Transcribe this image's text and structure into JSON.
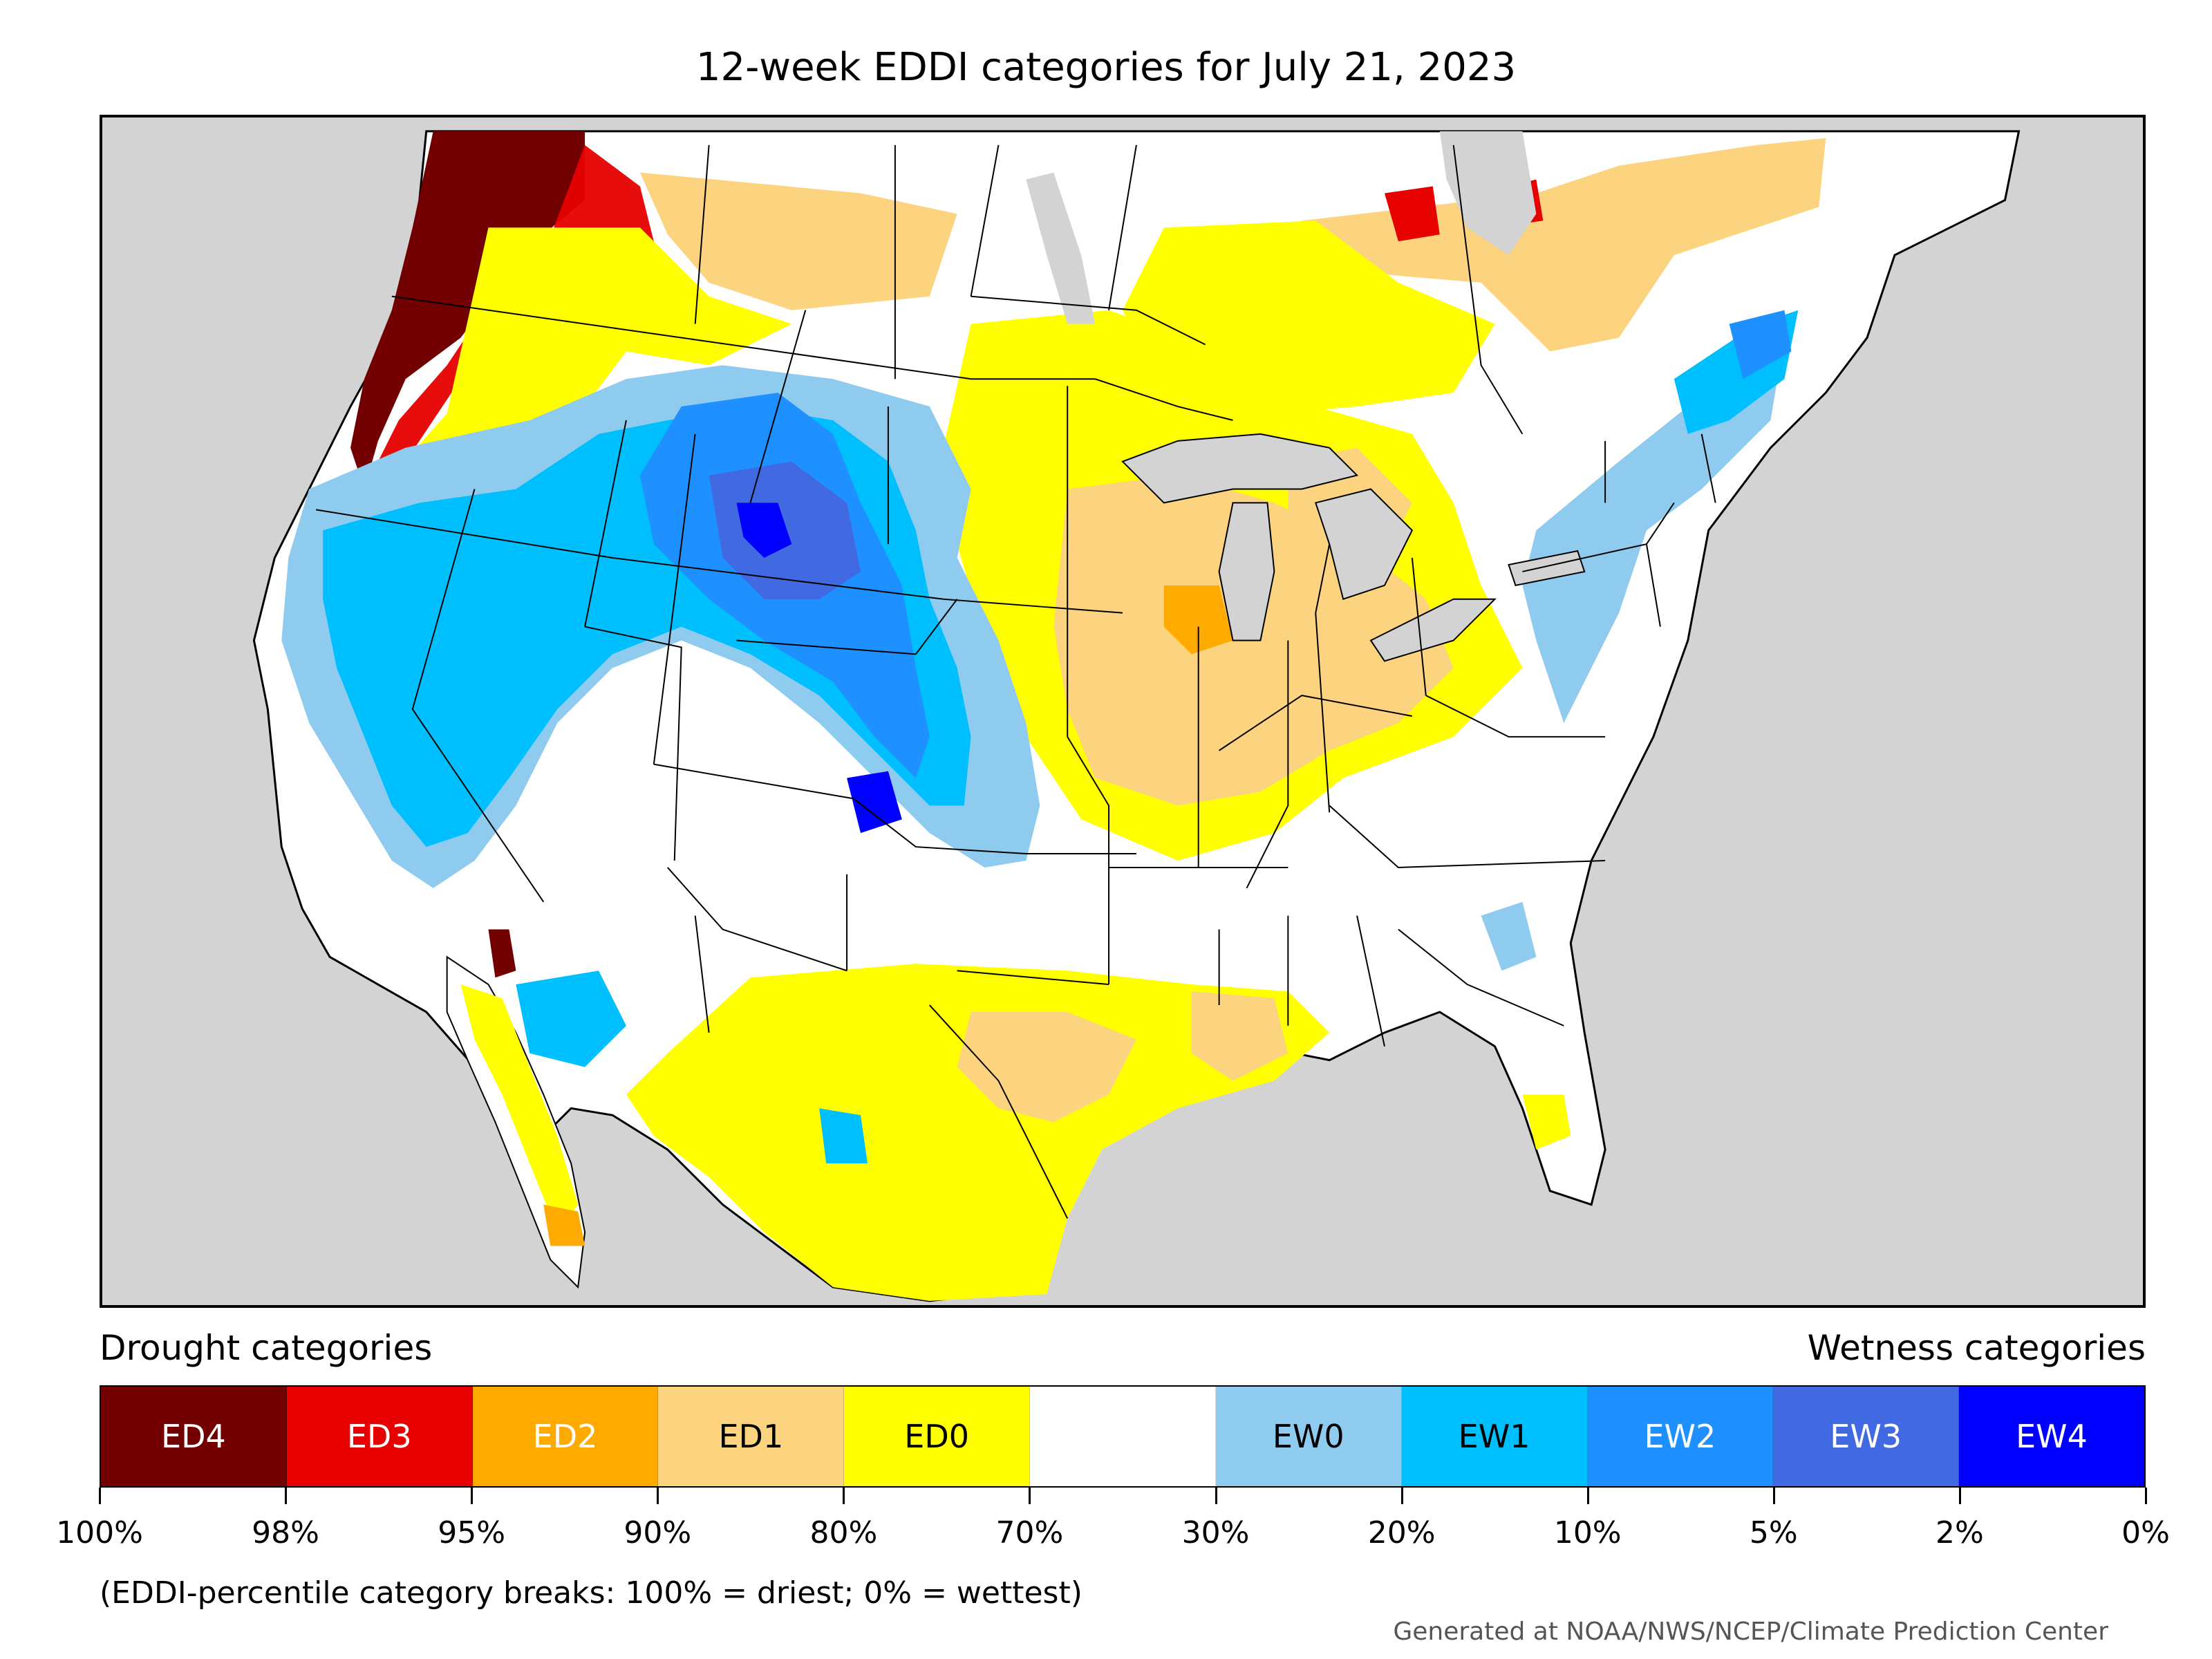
{
  "title": "12-week EDDI categories for July 21, 2023",
  "legend": {
    "drought_label": "Drought categories",
    "wetness_label": "Wetness categories",
    "categories": [
      {
        "label": "ED4",
        "color": "#730000",
        "text_color": "#ffffff"
      },
      {
        "label": "ED3",
        "color": "#e60000",
        "text_color": "#ffffff"
      },
      {
        "label": "ED2",
        "color": "#ffaa00",
        "text_color": "#ffffff"
      },
      {
        "label": "ED1",
        "color": "#fcd37f",
        "text_color": "#000000"
      },
      {
        "label": "ED0",
        "color": "#ffff00",
        "text_color": "#000000"
      },
      {
        "label": "",
        "color": "#ffffff",
        "text_color": "#000000"
      },
      {
        "label": "EW0",
        "color": "#8ecbee",
        "text_color": "#000000"
      },
      {
        "label": "EW1",
        "color": "#00bfff",
        "text_color": "#000000"
      },
      {
        "label": "EW2",
        "color": "#1e90ff",
        "text_color": "#ffffff"
      },
      {
        "label": "EW3",
        "color": "#4169e1",
        "text_color": "#ffffff"
      },
      {
        "label": "EW4",
        "color": "#0000ff",
        "text_color": "#ffffff"
      }
    ],
    "ticks": [
      "100%",
      "98%",
      "95%",
      "90%",
      "80%",
      "70%",
      "30%",
      "20%",
      "10%",
      "5%",
      "2%",
      "0%"
    ]
  },
  "footnote": "(EDDI-percentile category breaks: 100% = driest; 0% = wettest)",
  "credit": "Generated at NOAA/NWS/NCEP/Climate Prediction Center",
  "map": {
    "background_color": "#d3d3d3",
    "land_color": "#ffffff",
    "boundary_color": "#000000"
  }
}
